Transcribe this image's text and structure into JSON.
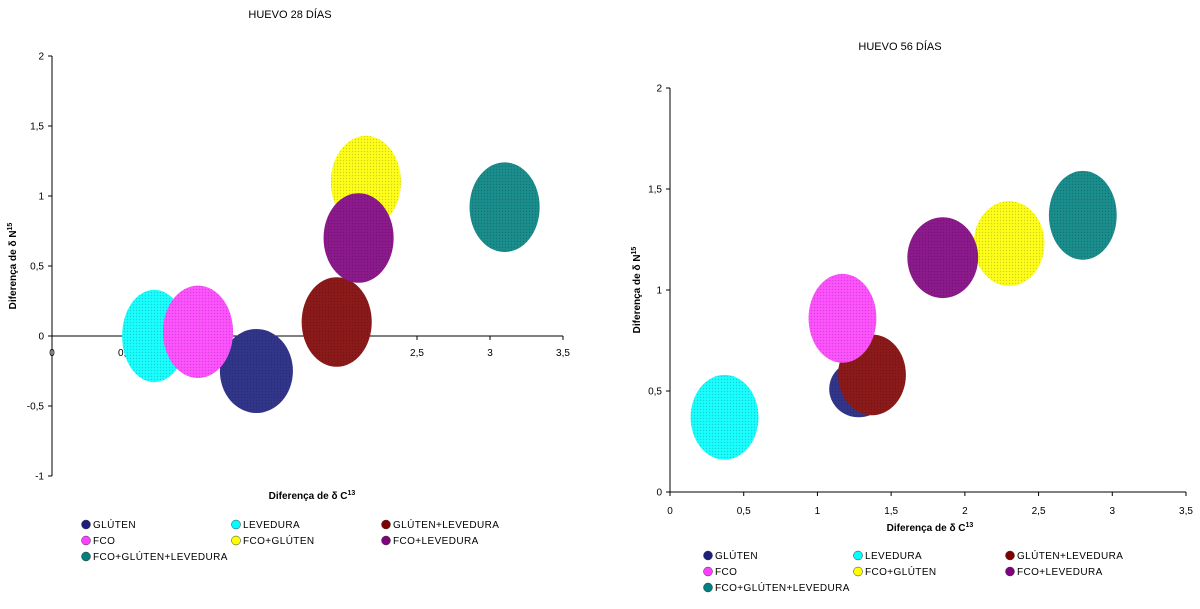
{
  "chart_data": [
    {
      "type": "scatter",
      "title": "HUEVO 28 DÍAS",
      "xlabel": "Diferença de δ C",
      "xlabel_sup": "13",
      "ylabel": "Diferença de δ N",
      "ylabel_sup": "15",
      "xlim": [
        0,
        3.5
      ],
      "ylim": [
        -1,
        2
      ],
      "x_ticks": [
        "0",
        "0,5",
        "1",
        "1,5",
        "2",
        "2,5",
        "3",
        "3,5"
      ],
      "y_ticks": [
        "-1",
        "-0,5",
        "0",
        "0,5",
        "1",
        "1,5",
        "2"
      ],
      "grid": false,
      "legend_position": "bottom",
      "series": [
        {
          "name": "GLÚTEN",
          "color": "#1b1f7e",
          "x": 1.4,
          "y": -0.25,
          "rx": 0.25,
          "ry": 0.3
        },
        {
          "name": "LEVEDURA",
          "color": "#00ffff",
          "x": 0.7,
          "y": 0.0,
          "rx": 0.22,
          "ry": 0.33
        },
        {
          "name": "GLÚTEN+LEVEDURA",
          "color": "#800000",
          "x": 1.95,
          "y": 0.1,
          "rx": 0.24,
          "ry": 0.32
        },
        {
          "name": "FCO",
          "color": "#ff3fff",
          "x": 1.0,
          "y": 0.03,
          "rx": 0.24,
          "ry": 0.33
        },
        {
          "name": "FCO+GLÚTEN",
          "color": "#ffff00",
          "x": 2.15,
          "y": 1.1,
          "rx": 0.24,
          "ry": 0.33
        },
        {
          "name": "FCO+LEVEDURA",
          "color": "#800080",
          "x": 2.1,
          "y": 0.7,
          "rx": 0.24,
          "ry": 0.32
        },
        {
          "name": "FCO+GLÚTEN+LEVEDURA",
          "color": "#008080",
          "x": 3.1,
          "y": 0.92,
          "rx": 0.24,
          "ry": 0.32
        }
      ]
    },
    {
      "type": "scatter",
      "title": "HUEVO 56 DÍAS",
      "xlabel": "Diferença de δ C",
      "xlabel_sup": "13",
      "ylabel": "Diferença de δ N",
      "ylabel_sup": "15",
      "xlim": [
        0,
        3.5
      ],
      "ylim": [
        0,
        2
      ],
      "x_ticks": [
        "0",
        "0,5",
        "1",
        "1,5",
        "2",
        "2,5",
        "3",
        "3,5"
      ],
      "y_ticks": [
        "0",
        "0,5",
        "1",
        "1,5",
        "2"
      ],
      "grid": false,
      "legend_position": "bottom",
      "series": [
        {
          "name": "GLÚTEN",
          "color": "#1b1f7e",
          "x": 1.28,
          "y": 0.51,
          "rx": 0.2,
          "ry": 0.14
        },
        {
          "name": "LEVEDURA",
          "color": "#00ffff",
          "x": 0.37,
          "y": 0.37,
          "rx": 0.23,
          "ry": 0.21
        },
        {
          "name": "GLÚTEN+LEVEDURA",
          "color": "#800000",
          "x": 1.37,
          "y": 0.58,
          "rx": 0.23,
          "ry": 0.2
        },
        {
          "name": "FCO",
          "color": "#ff3fff",
          "x": 1.17,
          "y": 0.86,
          "rx": 0.23,
          "ry": 0.22
        },
        {
          "name": "FCO+GLÚTEN",
          "color": "#ffff00",
          "x": 2.3,
          "y": 1.23,
          "rx": 0.24,
          "ry": 0.21
        },
        {
          "name": "FCO+LEVEDURA",
          "color": "#800080",
          "x": 1.85,
          "y": 1.16,
          "rx": 0.24,
          "ry": 0.2
        },
        {
          "name": "FCO+GLÚTEN+LEVEDURA",
          "color": "#008080",
          "x": 2.8,
          "y": 1.37,
          "rx": 0.23,
          "ry": 0.22
        }
      ]
    }
  ]
}
